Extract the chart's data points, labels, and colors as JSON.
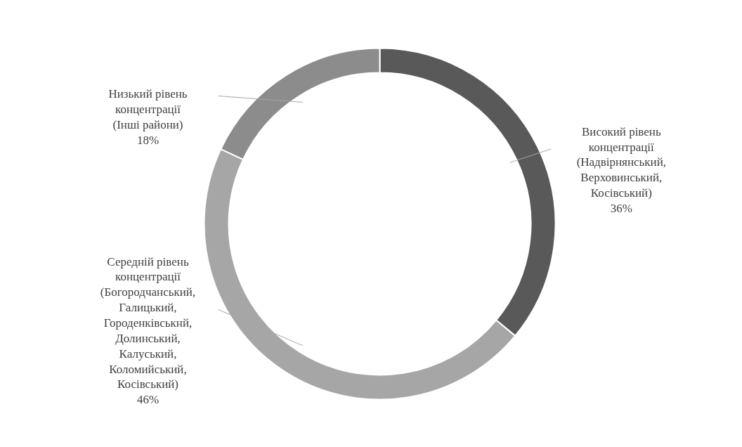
{
  "chart_data": {
    "type": "donut",
    "categories": [
      "Високий рівень концентрації (Надвірнянський, Верховинський, Косівський)",
      "Середній рівень концентрації (Богородчанський, Галицький, Городенківськнй, Долинський, Калуський, Коломийський, Косівський)",
      "Низький рівень концентрації (Інші райони)"
    ],
    "values": [
      36,
      46,
      18
    ],
    "colors": [
      "#595959",
      "#a6a6a6",
      "#8c8c8c"
    ],
    "value_labels": [
      "36%",
      "46%",
      "18%"
    ]
  }
}
